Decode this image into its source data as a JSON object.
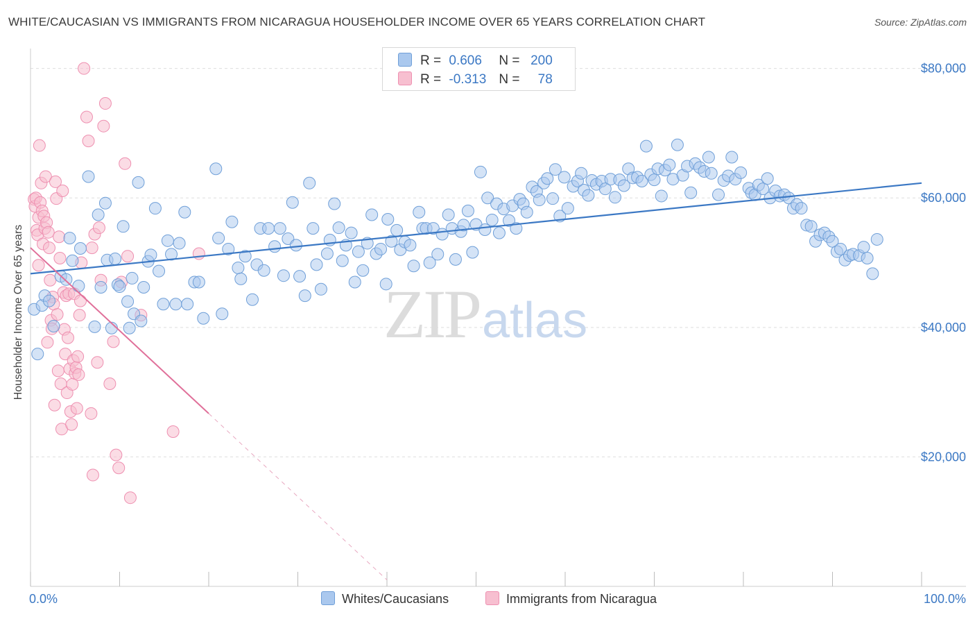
{
  "title": "WHITE/CAUCASIAN VS IMMIGRANTS FROM NICARAGUA HOUSEHOLDER INCOME OVER 65 YEARS CORRELATION CHART",
  "source": "Source: ZipAtlas.com",
  "watermark": {
    "zip": "ZIP",
    "atlas": "atlas"
  },
  "legend": {
    "row1": {
      "r_label": "R =",
      "r_value": "0.606",
      "n_label": "N =",
      "n_value": "200"
    },
    "row2": {
      "r_label": "R =",
      "r_value": "-0.313",
      "n_label": "N =",
      "n_value": "78"
    }
  },
  "bottom_legend": {
    "series1": "Whites/Caucasians",
    "series2": "Immigrants from Nicaragua"
  },
  "colors": {
    "blue_fill": "#aac8ee",
    "blue_stroke": "#6f9fd8",
    "blue_line": "#3b78c4",
    "pink_fill": "#f7bfd0",
    "pink_stroke": "#ee8fb0",
    "pink_line": "#e0709a",
    "tick_label": "#3b78c4"
  },
  "chart_data": {
    "type": "scatter",
    "title": "WHITE/CAUCASIAN VS IMMIGRANTS FROM NICARAGUA HOUSEHOLDER INCOME OVER 65 YEARS CORRELATION CHART",
    "xlabel": "",
    "ylabel": "Householder Income Over 65 years",
    "x_tick_labels": [
      "0.0%",
      "100.0%"
    ],
    "y_tick_labels": [
      "$20,000",
      "$40,000",
      "$60,000",
      "$80,000"
    ],
    "y_ticks": [
      20000,
      40000,
      60000,
      80000
    ],
    "xlim": [
      0,
      100
    ],
    "ylim": [
      0,
      82000
    ],
    "grid": "horizontal dashed",
    "legend_position": "top-center",
    "series": [
      {
        "name": "Whites/Caucasians",
        "R": 0.606,
        "N": 200,
        "trend": {
          "x": [
            0,
            100
          ],
          "y": [
            48300,
            62300
          ]
        },
        "points": [
          [
            0.4,
            42800
          ],
          [
            0.8,
            35900
          ],
          [
            1.3,
            43400
          ],
          [
            1.6,
            44900
          ],
          [
            2.1,
            44100
          ],
          [
            2.6,
            40200
          ],
          [
            3.4,
            47900
          ],
          [
            4.0,
            47400
          ],
          [
            4.4,
            53800
          ],
          [
            4.7,
            50300
          ],
          [
            5.4,
            46400
          ],
          [
            5.6,
            52200
          ],
          [
            6.5,
            63300
          ],
          [
            7.2,
            40100
          ],
          [
            7.6,
            57400
          ],
          [
            7.9,
            46200
          ],
          [
            8.4,
            59200
          ],
          [
            8.6,
            50400
          ],
          [
            9.1,
            39900
          ],
          [
            9.5,
            50600
          ],
          [
            9.8,
            46600
          ],
          [
            10.0,
            46300
          ],
          [
            10.4,
            55600
          ],
          [
            10.9,
            44000
          ],
          [
            11.1,
            39900
          ],
          [
            11.4,
            47600
          ],
          [
            11.6,
            42100
          ],
          [
            12.1,
            62400
          ],
          [
            12.4,
            41000
          ],
          [
            12.7,
            46200
          ],
          [
            13.2,
            50200
          ],
          [
            13.5,
            51200
          ],
          [
            14.0,
            58400
          ],
          [
            14.4,
            48700
          ],
          [
            14.9,
            43600
          ],
          [
            15.4,
            53400
          ],
          [
            15.8,
            51300
          ],
          [
            16.3,
            43600
          ],
          [
            16.7,
            53000
          ],
          [
            17.3,
            57800
          ],
          [
            17.6,
            43600
          ],
          [
            18.4,
            47000
          ],
          [
            18.9,
            47000
          ],
          [
            19.4,
            41400
          ],
          [
            20.8,
            64500
          ],
          [
            21.1,
            53800
          ],
          [
            21.5,
            42100
          ],
          [
            22.2,
            52100
          ],
          [
            22.6,
            56300
          ],
          [
            23.3,
            49200
          ],
          [
            23.6,
            47500
          ],
          [
            24.1,
            51000
          ],
          [
            24.9,
            44300
          ],
          [
            25.4,
            49700
          ],
          [
            25.8,
            55300
          ],
          [
            26.2,
            48800
          ],
          [
            26.7,
            55300
          ],
          [
            27.4,
            52500
          ],
          [
            28.0,
            55300
          ],
          [
            28.4,
            48000
          ],
          [
            28.9,
            53700
          ],
          [
            29.4,
            59300
          ],
          [
            29.8,
            52700
          ],
          [
            30.2,
            47900
          ],
          [
            30.8,
            44900
          ],
          [
            31.3,
            62300
          ],
          [
            31.7,
            55300
          ],
          [
            32.1,
            49700
          ],
          [
            32.6,
            45900
          ],
          [
            33.3,
            51400
          ],
          [
            33.6,
            53500
          ],
          [
            34.1,
            59100
          ],
          [
            34.6,
            55400
          ],
          [
            35.0,
            50300
          ],
          [
            35.4,
            52700
          ],
          [
            36.0,
            54600
          ],
          [
            36.4,
            47000
          ],
          [
            36.8,
            51700
          ],
          [
            37.3,
            48800
          ],
          [
            37.8,
            53000
          ],
          [
            38.3,
            57400
          ],
          [
            38.8,
            51400
          ],
          [
            39.3,
            52100
          ],
          [
            39.9,
            46700
          ],
          [
            40.1,
            56700
          ],
          [
            40.5,
            53300
          ],
          [
            41.1,
            55000
          ],
          [
            41.5,
            52000
          ],
          [
            42.0,
            53200
          ],
          [
            42.6,
            52700
          ],
          [
            43.0,
            49500
          ],
          [
            43.6,
            57800
          ],
          [
            44.0,
            55300
          ],
          [
            44.4,
            55300
          ],
          [
            44.8,
            50000
          ],
          [
            45.2,
            55300
          ],
          [
            45.7,
            51300
          ],
          [
            46.2,
            54400
          ],
          [
            46.9,
            57400
          ],
          [
            47.3,
            55300
          ],
          [
            47.7,
            50500
          ],
          [
            48.3,
            54800
          ],
          [
            48.6,
            55800
          ],
          [
            49.1,
            58000
          ],
          [
            49.6,
            51600
          ],
          [
            50.0,
            55900
          ],
          [
            50.5,
            64000
          ],
          [
            51.0,
            55100
          ],
          [
            51.3,
            60000
          ],
          [
            51.8,
            56600
          ],
          [
            52.3,
            59100
          ],
          [
            52.6,
            54600
          ],
          [
            53.1,
            58300
          ],
          [
            53.7,
            56500
          ],
          [
            54.1,
            58800
          ],
          [
            54.5,
            55300
          ],
          [
            54.9,
            59800
          ],
          [
            55.3,
            59100
          ],
          [
            55.7,
            57800
          ],
          [
            56.3,
            61700
          ],
          [
            56.8,
            61000
          ],
          [
            57.1,
            59700
          ],
          [
            57.6,
            62300
          ],
          [
            58.0,
            63000
          ],
          [
            58.6,
            59900
          ],
          [
            58.9,
            64400
          ],
          [
            59.4,
            57200
          ],
          [
            59.9,
            63200
          ],
          [
            60.3,
            58400
          ],
          [
            60.9,
            61800
          ],
          [
            61.4,
            62600
          ],
          [
            61.8,
            63800
          ],
          [
            62.1,
            61200
          ],
          [
            62.6,
            60400
          ],
          [
            63.0,
            62700
          ],
          [
            63.5,
            62100
          ],
          [
            64.1,
            62600
          ],
          [
            64.5,
            61400
          ],
          [
            65.1,
            62900
          ],
          [
            65.6,
            60100
          ],
          [
            66.1,
            62800
          ],
          [
            66.6,
            61900
          ],
          [
            67.1,
            64500
          ],
          [
            67.6,
            63100
          ],
          [
            68.1,
            63200
          ],
          [
            68.6,
            62600
          ],
          [
            69.1,
            68000
          ],
          [
            69.6,
            63600
          ],
          [
            70.0,
            62800
          ],
          [
            70.4,
            64500
          ],
          [
            70.8,
            60300
          ],
          [
            71.2,
            64300
          ],
          [
            71.7,
            65100
          ],
          [
            72.1,
            62900
          ],
          [
            72.6,
            68200
          ],
          [
            73.2,
            63500
          ],
          [
            73.7,
            64900
          ],
          [
            74.1,
            60800
          ],
          [
            74.6,
            65300
          ],
          [
            75.1,
            64700
          ],
          [
            75.6,
            64100
          ],
          [
            76.1,
            66300
          ],
          [
            76.4,
            63800
          ],
          [
            77.2,
            60500
          ],
          [
            77.8,
            62700
          ],
          [
            78.3,
            63400
          ],
          [
            78.7,
            66300
          ],
          [
            79.1,
            62900
          ],
          [
            79.7,
            63900
          ],
          [
            80.6,
            61500
          ],
          [
            80.9,
            60800
          ],
          [
            81.3,
            60500
          ],
          [
            81.7,
            62000
          ],
          [
            82.2,
            61400
          ],
          [
            82.7,
            63000
          ],
          [
            83.0,
            60000
          ],
          [
            83.6,
            61100
          ],
          [
            84.1,
            60300
          ],
          [
            84.6,
            60500
          ],
          [
            85.1,
            60000
          ],
          [
            85.6,
            58400
          ],
          [
            86.0,
            59000
          ],
          [
            86.5,
            58400
          ],
          [
            87.1,
            55800
          ],
          [
            87.6,
            55600
          ],
          [
            88.1,
            53300
          ],
          [
            88.6,
            54300
          ],
          [
            89.1,
            54600
          ],
          [
            89.6,
            54000
          ],
          [
            90.0,
            53300
          ],
          [
            90.5,
            51700
          ],
          [
            90.9,
            52100
          ],
          [
            91.4,
            50400
          ],
          [
            91.9,
            51100
          ],
          [
            92.3,
            51300
          ],
          [
            93.0,
            51100
          ],
          [
            93.5,
            52400
          ],
          [
            93.9,
            50700
          ],
          [
            94.5,
            48300
          ],
          [
            95.0,
            53600
          ]
        ]
      },
      {
        "name": "Immigrants from Nicaragua",
        "R": -0.313,
        "N": 78,
        "trend": {
          "x": [
            0,
            20
          ],
          "y": [
            52300,
            26700
          ]
        },
        "trend_extension": {
          "x": [
            20,
            40
          ],
          "y": [
            26700,
            1000
          ]
        },
        "points": [
          [
            0.4,
            59800
          ],
          [
            0.5,
            58700
          ],
          [
            0.6,
            60000
          ],
          [
            0.7,
            55000
          ],
          [
            0.8,
            54300
          ],
          [
            0.9,
            57000
          ],
          [
            1.0,
            68100
          ],
          [
            1.1,
            59300
          ],
          [
            1.2,
            62300
          ],
          [
            1.3,
            58000
          ],
          [
            1.4,
            52900
          ],
          [
            1.5,
            57200
          ],
          [
            1.6,
            55300
          ],
          [
            1.7,
            63300
          ],
          [
            1.8,
            56200
          ],
          [
            1.9,
            37700
          ],
          [
            2.0,
            54700
          ],
          [
            2.1,
            52300
          ],
          [
            2.2,
            47300
          ],
          [
            2.3,
            41100
          ],
          [
            2.4,
            39800
          ],
          [
            2.5,
            44700
          ],
          [
            2.6,
            43600
          ],
          [
            2.7,
            28000
          ],
          [
            2.8,
            62500
          ],
          [
            2.9,
            59900
          ],
          [
            3.0,
            42000
          ],
          [
            3.1,
            33300
          ],
          [
            3.2,
            54000
          ],
          [
            3.3,
            50700
          ],
          [
            3.4,
            31300
          ],
          [
            3.5,
            24300
          ],
          [
            3.6,
            61100
          ],
          [
            3.7,
            45400
          ],
          [
            3.8,
            39700
          ],
          [
            3.9,
            35900
          ],
          [
            4.0,
            44900
          ],
          [
            4.1,
            29900
          ],
          [
            4.2,
            38400
          ],
          [
            4.3,
            45200
          ],
          [
            4.4,
            33600
          ],
          [
            4.5,
            27000
          ],
          [
            4.6,
            25000
          ],
          [
            4.7,
            31200
          ],
          [
            4.8,
            34900
          ],
          [
            4.9,
            45200
          ],
          [
            5.0,
            32900
          ],
          [
            5.1,
            33800
          ],
          [
            5.2,
            27500
          ],
          [
            5.3,
            35500
          ],
          [
            5.4,
            32700
          ],
          [
            5.5,
            41900
          ],
          [
            5.6,
            44100
          ],
          [
            5.7,
            50000
          ],
          [
            6.0,
            80000
          ],
          [
            6.3,
            72500
          ],
          [
            6.5,
            68800
          ],
          [
            6.8,
            26700
          ],
          [
            6.9,
            52300
          ],
          [
            7.0,
            17200
          ],
          [
            7.2,
            54400
          ],
          [
            7.5,
            34600
          ],
          [
            7.7,
            55400
          ],
          [
            7.9,
            47300
          ],
          [
            8.2,
            71100
          ],
          [
            8.4,
            74600
          ],
          [
            8.9,
            31300
          ],
          [
            9.3,
            37800
          ],
          [
            9.6,
            20300
          ],
          [
            9.9,
            18300
          ],
          [
            10.2,
            47000
          ],
          [
            10.6,
            65300
          ],
          [
            10.9,
            51000
          ],
          [
            11.2,
            13700
          ],
          [
            12.4,
            41900
          ],
          [
            16.0,
            23900
          ],
          [
            18.9,
            51400
          ],
          [
            0.9,
            49600
          ]
        ]
      }
    ]
  }
}
